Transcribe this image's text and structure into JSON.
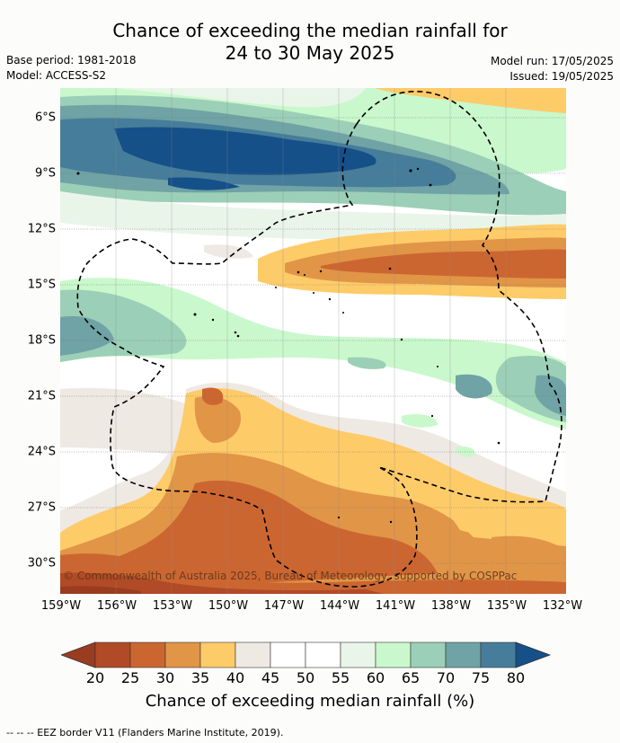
{
  "title_line1": "Chance of exceeding the median rainfall for",
  "title_line2": "24 to 30 May 2025",
  "base_period": "Base period: 1981-2018",
  "model": "Model: ACCESS-S2",
  "model_run": "Model run: 17/05/2025",
  "issued": "Issued: 19/05/2025",
  "y_ticks": [
    "6°S",
    "9°S",
    "12°S",
    "15°S",
    "18°S",
    "21°S",
    "24°S",
    "27°S",
    "30°S"
  ],
  "x_ticks": [
    "159°W",
    "156°W",
    "153°W",
    "150°W",
    "147°W",
    "144°W",
    "141°W",
    "138°W",
    "135°W",
    "132°W"
  ],
  "copyright": "© Commonwealth of Australia 2025, Bureau of Meteorology, supported by COSPPac",
  "colorbar": {
    "title": "Chance of exceeding median rainfall (%)",
    "ticks": [
      "20",
      "25",
      "30",
      "35",
      "40",
      "45",
      "50",
      "55",
      "60",
      "65",
      "70",
      "75",
      "80"
    ],
    "colors": [
      "#9a3c1f",
      "#b14a26",
      "#cc6631",
      "#e19547",
      "#fecb69",
      "#efe9e3",
      "#ffffff",
      "#ffffff",
      "#eaf5ea",
      "#c9f8cc",
      "#9ccfb7",
      "#6fa3a5",
      "#467d9a",
      "#155089"
    ]
  },
  "footnote": "-- -- -- EEZ border V11 (Flanders Marine Institute, 2019)."
}
